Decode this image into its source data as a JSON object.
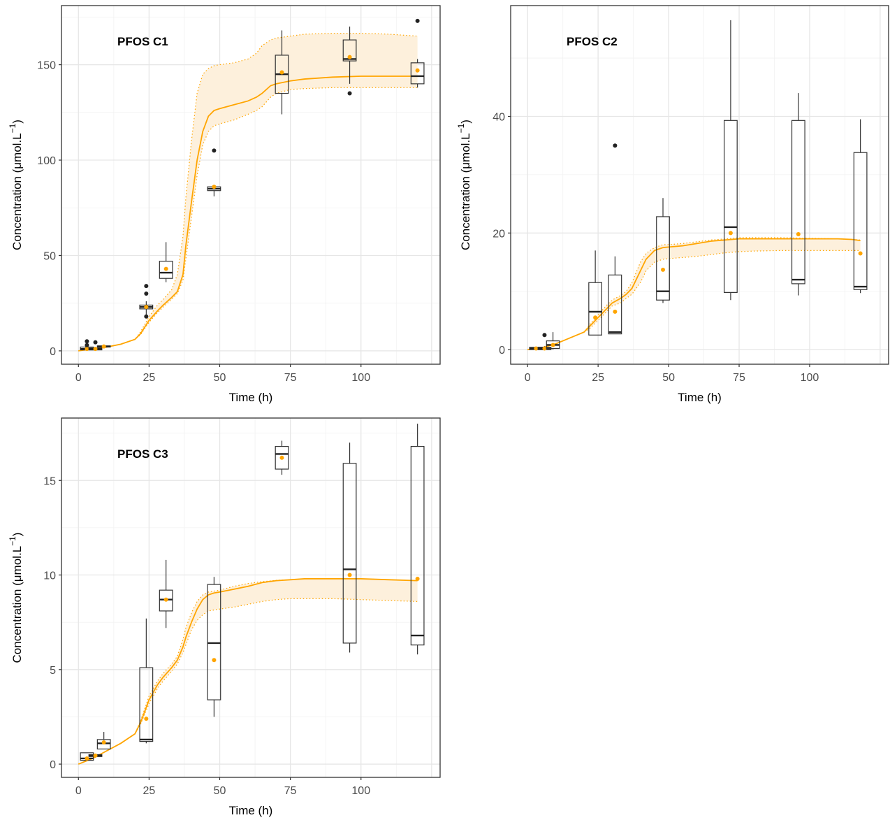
{
  "chart_data": [
    {
      "type": "line",
      "title": "PFOS C1",
      "xlabel": "Time (h)",
      "ylabel_prefix": "Concentration (",
      "ylabel_mu": "μ",
      "ylabel_unit": "mol.L",
      "ylabel_exp": "−1",
      "ylabel_suffix": ")",
      "xlim": [
        -6,
        128
      ],
      "ylim": [
        -7,
        181
      ],
      "xticks": [
        0,
        25,
        50,
        75,
        100
      ],
      "yticks": [
        0,
        50,
        100,
        150
      ],
      "grid": true,
      "model": {
        "x": [
          0,
          5,
          10,
          15,
          20,
          22,
          25,
          28,
          30,
          33,
          35,
          37,
          38,
          40,
          42,
          44,
          46,
          48,
          50,
          55,
          60,
          63,
          65,
          68,
          70,
          75,
          80,
          90,
          100,
          110,
          120
        ],
        "median": [
          0,
          1,
          2,
          3.5,
          6,
          9,
          16,
          21,
          24,
          28,
          31,
          40,
          55,
          78,
          100,
          115,
          123,
          126,
          127,
          129,
          131,
          133,
          135,
          139,
          140,
          141.5,
          142.5,
          143.5,
          144,
          144,
          144
        ],
        "lower": [
          0,
          1,
          2,
          3.5,
          6,
          8.5,
          15,
          20,
          23,
          27,
          30,
          37,
          48,
          70,
          92,
          108,
          115,
          118,
          119,
          121,
          124,
          126,
          128,
          133,
          135,
          137,
          137.5,
          138,
          138,
          138,
          138
        ],
        "upper": [
          0,
          1,
          2,
          3.5,
          6,
          10,
          18,
          24,
          27,
          32,
          40,
          60,
          80,
          110,
          135,
          145,
          148,
          149.5,
          150,
          151,
          153,
          156,
          160,
          163,
          164,
          165,
          166,
          166.5,
          166.5,
          166,
          165
        ]
      },
      "boxes": [
        {
          "x": 3,
          "min": 0,
          "q1": 0.5,
          "median": 1,
          "q3": 2,
          "max": 2,
          "mean": 1
        },
        {
          "x": 6,
          "min": 0,
          "q1": 0.5,
          "median": 1,
          "q3": 1.5,
          "max": 2,
          "mean": 1
        },
        {
          "x": 9,
          "min": 1.5,
          "q1": 2,
          "median": 2.3,
          "q3": 2.6,
          "max": 3,
          "mean": 2.3
        },
        {
          "x": 24,
          "min": 18,
          "q1": 22,
          "median": 23,
          "q3": 24,
          "max": 26,
          "mean": 23
        },
        {
          "x": 31,
          "min": 36,
          "q1": 38,
          "median": 41,
          "q3": 47,
          "max": 57,
          "mean": 43
        },
        {
          "x": 48,
          "min": 81,
          "q1": 84,
          "median": 85,
          "q3": 86,
          "max": 87,
          "mean": 86
        },
        {
          "x": 72,
          "min": 124,
          "q1": 135,
          "median": 145,
          "q3": 155,
          "max": 168,
          "mean": 146
        },
        {
          "x": 96,
          "min": 140,
          "q1": 152,
          "median": 153,
          "q3": 163,
          "max": 170,
          "mean": 154
        },
        {
          "x": 120,
          "min": 138,
          "q1": 140,
          "median": 144,
          "q3": 151,
          "max": 153,
          "mean": 147
        }
      ],
      "outliers": [
        {
          "x": 3,
          "y": 5
        },
        {
          "x": 3,
          "y": 3
        },
        {
          "x": 6,
          "y": 4.5
        },
        {
          "x": 24,
          "y": 34
        },
        {
          "x": 24,
          "y": 30
        },
        {
          "x": 24,
          "y": 18
        },
        {
          "x": 48,
          "y": 105
        },
        {
          "x": 96,
          "y": 135
        },
        {
          "x": 120,
          "y": 173
        }
      ]
    },
    {
      "type": "line",
      "title": "PFOS C2",
      "xlabel": "Time (h)",
      "ylabel_prefix": "Concentration (",
      "ylabel_mu": "μ",
      "ylabel_unit": "mol.L",
      "ylabel_exp": "−1",
      "ylabel_suffix": ")",
      "xlim": [
        -6,
        128
      ],
      "ylim": [
        -2.5,
        59
      ],
      "xticks": [
        0,
        25,
        50,
        75,
        100
      ],
      "yticks": [
        0,
        20,
        40
      ],
      "grid": true,
      "model": {
        "x": [
          0,
          5,
          10,
          15,
          20,
          22,
          25,
          28,
          30,
          33,
          35,
          37,
          40,
          42,
          45,
          48,
          50,
          55,
          60,
          65,
          70,
          75,
          80,
          90,
          100,
          110,
          115,
          118
        ],
        "median": [
          0,
          0.3,
          1,
          2,
          3,
          4,
          5.5,
          7,
          8,
          8.8,
          9.5,
          10.5,
          13.5,
          15.5,
          17,
          17.5,
          17.6,
          17.8,
          18.2,
          18.6,
          18.8,
          19,
          19,
          19,
          19,
          19,
          18.9,
          18.7
        ],
        "lower": [
          0,
          0.3,
          1,
          2,
          3,
          3.6,
          5,
          6.5,
          7.5,
          8,
          8.8,
          9.5,
          11.5,
          13.5,
          15,
          15.5,
          15.6,
          15.8,
          16,
          16.3,
          16.6,
          16.8,
          16.9,
          17,
          17,
          17,
          17,
          17
        ],
        "upper": [
          0,
          0.3,
          1,
          2,
          3,
          4.3,
          6,
          7.6,
          8.5,
          9.3,
          10,
          11.5,
          15,
          16.5,
          17.5,
          18,
          18,
          18.2,
          18.5,
          18.8,
          19,
          19.2,
          19.2,
          19.2,
          19.1,
          19,
          18.9,
          18.8
        ]
      },
      "boxes": [
        {
          "x": 3,
          "min": 0,
          "q1": 0,
          "median": 0.2,
          "q3": 0.4,
          "max": 0.5,
          "mean": 0.2
        },
        {
          "x": 6,
          "min": 0,
          "q1": 0,
          "median": 0.2,
          "q3": 0.4,
          "max": 0.6,
          "mean": 0.2
        },
        {
          "x": 9,
          "min": 0,
          "q1": 0.2,
          "median": 0.8,
          "q3": 1.5,
          "max": 3,
          "mean": 0.8
        },
        {
          "x": 24,
          "min": 2.5,
          "q1": 2.5,
          "median": 6.5,
          "q3": 11.5,
          "max": 17,
          "mean": 5.5
        },
        {
          "x": 31,
          "min": 2.7,
          "q1": 2.7,
          "median": 3,
          "q3": 12.8,
          "max": 16,
          "mean": 6.5
        },
        {
          "x": 48,
          "min": 8,
          "q1": 8.5,
          "median": 10,
          "q3": 22.8,
          "max": 26,
          "mean": 13.7
        },
        {
          "x": 72,
          "min": 8.5,
          "q1": 9.8,
          "median": 21,
          "q3": 39.3,
          "max": 56.5,
          "mean": 20
        },
        {
          "x": 96,
          "min": 9.3,
          "q1": 11.3,
          "median": 12,
          "q3": 39.3,
          "max": 44,
          "mean": 19.8
        },
        {
          "x": 118,
          "min": 9.7,
          "q1": 10.3,
          "median": 10.8,
          "q3": 33.8,
          "max": 39.5,
          "mean": 16.5
        }
      ],
      "outliers": [
        {
          "x": 6,
          "y": 2.5
        },
        {
          "x": 31,
          "y": 35
        }
      ]
    },
    {
      "type": "line",
      "title": "PFOS C3",
      "xlabel": "Time (h)",
      "ylabel_prefix": "Concentration (",
      "ylabel_mu": "μ",
      "ylabel_unit": "mol.L",
      "ylabel_exp": "−1",
      "ylabel_suffix": ")",
      "xlim": [
        -6,
        128
      ],
      "ylim": [
        -0.7,
        18.3
      ],
      "xticks": [
        0,
        25,
        50,
        75,
        100
      ],
      "yticks": [
        0,
        5,
        10,
        15
      ],
      "grid": true,
      "model": {
        "x": [
          0,
          5,
          10,
          15,
          20,
          22,
          25,
          28,
          30,
          33,
          35,
          37,
          38,
          40,
          42,
          44,
          46,
          48,
          50,
          55,
          60,
          65,
          70,
          75,
          80,
          90,
          100,
          110,
          120
        ],
        "median": [
          0,
          0.3,
          0.7,
          1.1,
          1.6,
          2.2,
          3.4,
          4.2,
          4.6,
          5.1,
          5.5,
          6.2,
          6.7,
          7.5,
          8.2,
          8.7,
          8.95,
          9.05,
          9.1,
          9.25,
          9.4,
          9.6,
          9.7,
          9.75,
          9.8,
          9.8,
          9.8,
          9.75,
          9.7
        ],
        "lower": [
          0,
          0.3,
          0.7,
          1.1,
          1.6,
          2.1,
          3.2,
          4,
          4.4,
          4.9,
          5.3,
          5.9,
          6.3,
          7.1,
          7.6,
          7.9,
          8.1,
          8.15,
          8.2,
          8.3,
          8.45,
          8.6,
          8.7,
          8.75,
          8.75,
          8.75,
          8.7,
          8.65,
          8.6
        ],
        "upper": [
          0,
          0.3,
          0.7,
          1.1,
          1.6,
          2.3,
          3.6,
          4.4,
          4.8,
          5.3,
          5.7,
          6.6,
          7.2,
          8.0,
          8.6,
          8.95,
          9.1,
          9.15,
          9.2,
          9.4,
          9.55,
          9.65,
          9.72,
          9.75,
          9.8,
          9.8,
          9.8,
          9.75,
          9.7
        ]
      },
      "boxes": [
        {
          "x": 3,
          "min": 0.2,
          "q1": 0.2,
          "median": 0.3,
          "q3": 0.6,
          "max": 0.6,
          "mean": 0.3
        },
        {
          "x": 6,
          "min": 0.35,
          "q1": 0.4,
          "median": 0.45,
          "q3": 0.5,
          "max": 0.55,
          "mean": 0.45
        },
        {
          "x": 9,
          "min": 0.8,
          "q1": 0.8,
          "median": 1.1,
          "q3": 1.3,
          "max": 1.7,
          "mean": 1.15
        },
        {
          "x": 24,
          "min": 1.1,
          "q1": 1.2,
          "median": 1.3,
          "q3": 5.1,
          "max": 7.7,
          "mean": 2.4
        },
        {
          "x": 31,
          "min": 7.2,
          "q1": 8.1,
          "median": 8.7,
          "q3": 9.2,
          "max": 10.8,
          "mean": 8.7
        },
        {
          "x": 48,
          "min": 2.5,
          "q1": 3.4,
          "median": 6.4,
          "q3": 9.5,
          "max": 9.9,
          "mean": 5.5
        },
        {
          "x": 72,
          "min": 15.3,
          "q1": 15.6,
          "median": 16.4,
          "q3": 16.8,
          "max": 17.1,
          "mean": 16.2
        },
        {
          "x": 96,
          "min": 5.9,
          "q1": 6.4,
          "median": 10.3,
          "q3": 15.9,
          "max": 17.0,
          "mean": 10
        },
        {
          "x": 120,
          "min": 5.8,
          "q1": 6.3,
          "median": 6.8,
          "q3": 16.8,
          "max": 18.0,
          "mean": 9.8
        }
      ],
      "outliers": []
    }
  ]
}
